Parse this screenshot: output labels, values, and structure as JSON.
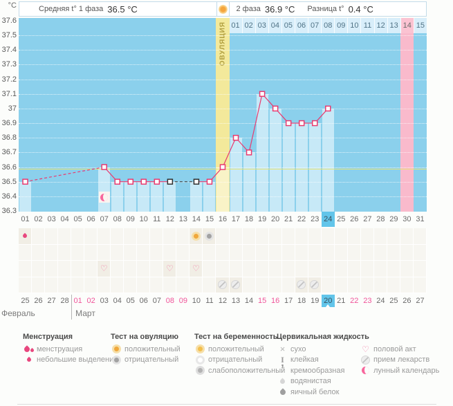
{
  "header": {
    "unit": "°C",
    "avg1_label": "Средняя t° 1 фаза",
    "avg1_value": "36.5 °C",
    "phase2_label": "2 фаза",
    "phase2_value": "36.9 °C",
    "diff_label": "Разница t°",
    "diff_value": "0.4 °C"
  },
  "chart_data": {
    "type": "line",
    "ylabel": "°C",
    "ylim": [
      36.3,
      37.6
    ],
    "y_step": 0.1,
    "y_tick_labels": [
      "37.6",
      "37.5",
      "37.4",
      "37.3",
      "37.2",
      "37.1",
      "37",
      "36.9",
      "36.8",
      "36.7",
      "36.6",
      "36.5",
      "36.4",
      "36.3"
    ],
    "x_days": 31,
    "cycle_day_labels": [
      "01",
      "02",
      "03",
      "04",
      "05",
      "06",
      "07",
      "08",
      "09",
      "10",
      "11",
      "12",
      "13",
      "14",
      "15",
      "16",
      "17",
      "18",
      "19",
      "20",
      "21",
      "22",
      "23",
      "24",
      "25",
      "26",
      "27",
      "28",
      "29",
      "30",
      "31"
    ],
    "phase2_labels": [
      "01",
      "02",
      "03",
      "04",
      "05",
      "06",
      "07",
      "08",
      "09",
      "10",
      "11",
      "12",
      "13",
      "14",
      "15"
    ],
    "phase2_period_label": "14",
    "ovulation_day": 16,
    "ovulation_label": "ОВУЛЯЦИЯ",
    "expected_period_day": 30,
    "today_day": 24,
    "coverline": 36.6,
    "lunar_marker_day": 7,
    "points": [
      {
        "day": 1,
        "temp": 36.5,
        "status": "normal"
      },
      {
        "day": 7,
        "temp": 36.6,
        "status": "normal"
      },
      {
        "day": 8,
        "temp": 36.5,
        "status": "normal"
      },
      {
        "day": 9,
        "temp": 36.5,
        "status": "normal"
      },
      {
        "day": 10,
        "temp": 36.5,
        "status": "normal"
      },
      {
        "day": 11,
        "temp": 36.5,
        "status": "normal"
      },
      {
        "day": 12,
        "temp": 36.5,
        "status": "excluded"
      },
      {
        "day": 14,
        "temp": 36.5,
        "status": "excluded"
      },
      {
        "day": 15,
        "temp": 36.5,
        "status": "normal"
      },
      {
        "day": 16,
        "temp": 36.6,
        "status": "normal"
      },
      {
        "day": 17,
        "temp": 36.8,
        "status": "normal"
      },
      {
        "day": 18,
        "temp": 36.7,
        "status": "normal"
      },
      {
        "day": 19,
        "temp": 37.1,
        "status": "normal"
      },
      {
        "day": 20,
        "temp": 37.0,
        "status": "normal"
      },
      {
        "day": 21,
        "temp": 36.9,
        "status": "normal"
      },
      {
        "day": 22,
        "temp": 36.9,
        "status": "normal"
      },
      {
        "day": 23,
        "temp": 36.9,
        "status": "normal"
      },
      {
        "day": 24,
        "temp": 37.0,
        "status": "normal"
      }
    ]
  },
  "events_grid": {
    "rows": [
      {
        "cells": [
          {
            "day": 1,
            "icon": "spotting"
          },
          {
            "day": 14,
            "icon": "ovu-pos"
          },
          {
            "day": 15,
            "icon": "ovu-neg"
          }
        ]
      },
      {
        "cells": []
      },
      {
        "cells": [
          {
            "day": 7,
            "icon": "heart"
          },
          {
            "day": 12,
            "icon": "heart"
          },
          {
            "day": 14,
            "icon": "heart"
          }
        ]
      },
      {
        "cells": [
          {
            "day": 16,
            "icon": "pill"
          },
          {
            "day": 17,
            "icon": "pill"
          },
          {
            "day": 22,
            "icon": "pill"
          },
          {
            "day": 23,
            "icon": "pill"
          }
        ]
      }
    ]
  },
  "calendar": {
    "months": [
      {
        "name": "Февраль",
        "start_day": 1
      },
      {
        "name": "Март",
        "start_day": 5
      }
    ],
    "dates": [
      {
        "label": "25"
      },
      {
        "label": "26"
      },
      {
        "label": "27"
      },
      {
        "label": "28"
      },
      {
        "label": "01",
        "weekend": true
      },
      {
        "label": "02",
        "weekend": true
      },
      {
        "label": "03"
      },
      {
        "label": "04"
      },
      {
        "label": "05"
      },
      {
        "label": "06"
      },
      {
        "label": "07"
      },
      {
        "label": "08",
        "weekend": true
      },
      {
        "label": "09",
        "weekend": true
      },
      {
        "label": "10"
      },
      {
        "label": "11"
      },
      {
        "label": "12"
      },
      {
        "label": "13"
      },
      {
        "label": "14"
      },
      {
        "label": "15",
        "weekend": true
      },
      {
        "label": "16",
        "weekend": true
      },
      {
        "label": "17"
      },
      {
        "label": "18"
      },
      {
        "label": "19"
      },
      {
        "label": "20",
        "today": true
      },
      {
        "label": "21"
      },
      {
        "label": "22",
        "weekend": true
      },
      {
        "label": "23",
        "weekend": true
      },
      {
        "label": "24"
      },
      {
        "label": "25"
      },
      {
        "label": "26"
      },
      {
        "label": "27"
      }
    ]
  },
  "legend": {
    "columns": [
      {
        "title": "Менструация",
        "items": [
          {
            "icon": "menses",
            "label": "менструация"
          },
          {
            "icon": "spotting",
            "label": "небольшие выделения"
          }
        ]
      },
      {
        "title": "Тест на овуляцию",
        "items": [
          {
            "icon": "ovu-pos",
            "label": "положительный"
          },
          {
            "icon": "ovu-neg",
            "label": "отрицательный"
          }
        ]
      },
      {
        "title": "Тест на беременность",
        "items": [
          {
            "icon": "preg-pos",
            "label": "положительный"
          },
          {
            "icon": "preg-neg",
            "label": "отрицательный"
          },
          {
            "icon": "preg-weak",
            "label": "слабоположительный"
          }
        ]
      },
      {
        "title": "Цервикальная жидкость",
        "items": [
          {
            "icon": "dry",
            "label": "сухо"
          },
          {
            "icon": "sticky",
            "label": "клейкая"
          },
          {
            "icon": "creamy",
            "label": "кремообразная"
          },
          {
            "icon": "watery",
            "label": "водянистая"
          },
          {
            "icon": "eggwhite",
            "label": "яичный белок"
          }
        ]
      },
      {
        "title": "",
        "items": [
          {
            "icon": "heart",
            "label": "половой акт"
          },
          {
            "icon": "pill",
            "label": "прием лекарств"
          },
          {
            "icon": "lunar",
            "label": "лунный календарь"
          }
        ]
      }
    ]
  },
  "colors": {
    "temp_line": "#e93a6f",
    "excluded_point": "#2f2f2f",
    "chart_bg": "#8bd0ec",
    "recorded_bar": "#c7e9f7",
    "ovulation_band": "#f3e99b",
    "ovulation_bar": "#f9f3c7",
    "period_band": "#f9bacc",
    "today_highlight": "#62c5ea",
    "coverline": "#e9e473",
    "weekend_date": "#f0549a"
  }
}
